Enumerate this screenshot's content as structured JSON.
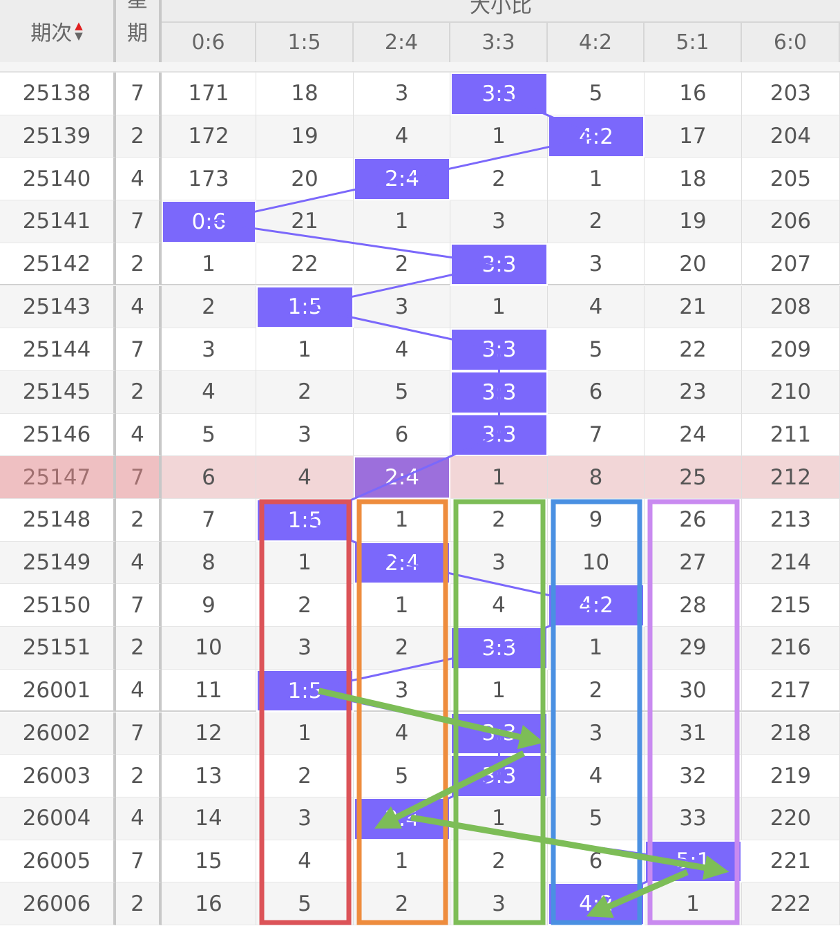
{
  "header": {
    "period_label": "期次",
    "weekday_label_1": "星",
    "weekday_label_2": "期",
    "group_label": "大小比",
    "columns": [
      "0:6",
      "1:5",
      "2:4",
      "3:3",
      "4:2",
      "5:1",
      "6:0"
    ],
    "sort_up": "▲",
    "sort_down": "▼"
  },
  "colors": {
    "hit": "#7b68fb",
    "hit_highlight": "#9c6fdc",
    "highlight_row": "#f2d6d7",
    "highlight_row_left": "#efc0c2",
    "line": "#7b68fb",
    "arrow": "#7dbd57",
    "boxes": [
      "#dc5358",
      "#ee8c3d",
      "#7dbd57",
      "#4a90e2",
      "#c98af0"
    ]
  },
  "highlighted_period": "25147",
  "rows": [
    {
      "period": "25138",
      "weekday": "7",
      "cells": [
        "171",
        "18",
        "3",
        "3:3",
        "5",
        "16",
        "203"
      ],
      "hit": 3
    },
    {
      "period": "25139",
      "weekday": "2",
      "cells": [
        "172",
        "19",
        "4",
        "1",
        "4:2",
        "17",
        "204"
      ],
      "hit": 4
    },
    {
      "period": "25140",
      "weekday": "4",
      "cells": [
        "173",
        "20",
        "2:4",
        "2",
        "1",
        "18",
        "205"
      ],
      "hit": 2
    },
    {
      "period": "25141",
      "weekday": "7",
      "cells": [
        "0:6",
        "21",
        "1",
        "3",
        "2",
        "19",
        "206"
      ],
      "hit": 0
    },
    {
      "period": "25142",
      "weekday": "2",
      "cells": [
        "1",
        "22",
        "2",
        "3:3",
        "3",
        "20",
        "207"
      ],
      "hit": 3
    },
    {
      "period": "25143",
      "weekday": "4",
      "cells": [
        "2",
        "1:5",
        "3",
        "1",
        "4",
        "21",
        "208"
      ],
      "hit": 1
    },
    {
      "period": "25144",
      "weekday": "7",
      "cells": [
        "3",
        "1",
        "4",
        "3:3",
        "5",
        "22",
        "209"
      ],
      "hit": 3
    },
    {
      "period": "25145",
      "weekday": "2",
      "cells": [
        "4",
        "2",
        "5",
        "3:3",
        "6",
        "23",
        "210"
      ],
      "hit": 3
    },
    {
      "period": "25146",
      "weekday": "4",
      "cells": [
        "5",
        "3",
        "6",
        "3:3",
        "7",
        "24",
        "211"
      ],
      "hit": 3
    },
    {
      "period": "25147",
      "weekday": "7",
      "cells": [
        "6",
        "4",
        "2:4",
        "1",
        "8",
        "25",
        "212"
      ],
      "hit": 2
    },
    {
      "period": "25148",
      "weekday": "2",
      "cells": [
        "7",
        "1:5",
        "1",
        "2",
        "9",
        "26",
        "213"
      ],
      "hit": 1
    },
    {
      "period": "25149",
      "weekday": "4",
      "cells": [
        "8",
        "1",
        "2:4",
        "3",
        "10",
        "27",
        "214"
      ],
      "hit": 2
    },
    {
      "period": "25150",
      "weekday": "7",
      "cells": [
        "9",
        "2",
        "1",
        "4",
        "4:2",
        "28",
        "215"
      ],
      "hit": 4
    },
    {
      "period": "25151",
      "weekday": "2",
      "cells": [
        "10",
        "3",
        "2",
        "3:3",
        "1",
        "29",
        "216"
      ],
      "hit": 3
    },
    {
      "period": "26001",
      "weekday": "4",
      "cells": [
        "11",
        "1:5",
        "3",
        "1",
        "2",
        "30",
        "217"
      ],
      "hit": 1
    },
    {
      "period": "26002",
      "weekday": "7",
      "cells": [
        "12",
        "1",
        "4",
        "3:3",
        "3",
        "31",
        "218"
      ],
      "hit": 3
    },
    {
      "period": "26003",
      "weekday": "2",
      "cells": [
        "13",
        "2",
        "5",
        "3:3",
        "4",
        "32",
        "219"
      ],
      "hit": 3
    },
    {
      "period": "26004",
      "weekday": "4",
      "cells": [
        "14",
        "3",
        "2:4",
        "1",
        "5",
        "33",
        "220"
      ],
      "hit": 2
    },
    {
      "period": "26005",
      "weekday": "7",
      "cells": [
        "15",
        "4",
        "1",
        "2",
        "6",
        "5:1",
        "221"
      ],
      "hit": 5
    },
    {
      "period": "26006",
      "weekday": "2",
      "cells": [
        "16",
        "5",
        "2",
        "3",
        "4:2",
        "1",
        "222"
      ],
      "hit": 4
    }
  ]
}
